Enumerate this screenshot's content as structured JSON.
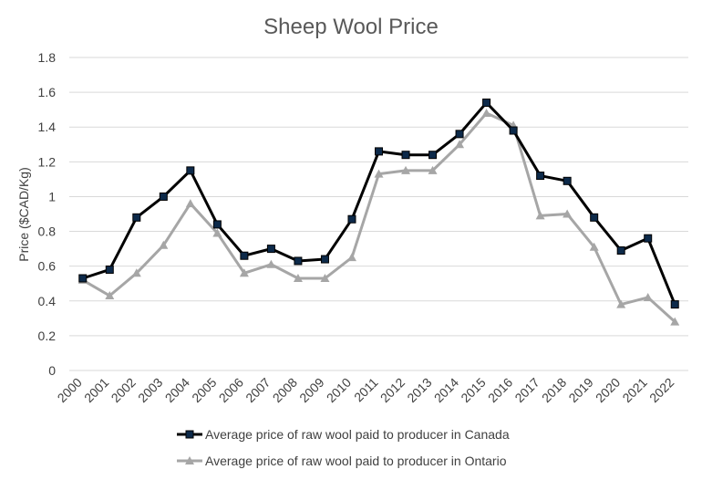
{
  "chart_data": {
    "type": "line",
    "title": "Sheep Wool Price",
    "xlabel": "",
    "ylabel": "Price ($CAD/Kg)",
    "ylim": [
      0,
      1.8
    ],
    "yticks": [
      "0",
      "0.2",
      "0.4",
      "0.6",
      "0.8",
      "1",
      "1.2",
      "1.4",
      "1.6",
      "1.8"
    ],
    "categories": [
      "2000",
      "2001",
      "2002",
      "2003",
      "2004",
      "2005",
      "2006",
      "2007",
      "2008",
      "2009",
      "2010",
      "2011",
      "2012",
      "2013",
      "2014",
      "2015",
      "2016",
      "2017",
      "2018",
      "2019",
      "2020",
      "2021",
      "2022"
    ],
    "grid": true,
    "legend_position": "bottom",
    "series": [
      {
        "name": "Average price of raw wool paid to producer in Canada",
        "color": "#000000",
        "marker": "square",
        "marker_fill": "#0d2a4a",
        "values": [
          0.53,
          0.58,
          0.88,
          1.0,
          1.15,
          0.84,
          0.66,
          0.7,
          0.63,
          0.64,
          0.87,
          1.26,
          1.24,
          1.24,
          1.36,
          1.54,
          1.38,
          1.12,
          1.09,
          0.88,
          0.69,
          0.76,
          0.38
        ]
      },
      {
        "name": "Average price of raw wool paid to producer in Ontario",
        "color": "#a6a6a6",
        "marker": "triangle",
        "marker_fill": "#a6a6a6",
        "values": [
          0.52,
          0.43,
          0.56,
          0.72,
          0.96,
          0.79,
          0.56,
          0.61,
          0.53,
          0.53,
          0.65,
          1.13,
          1.15,
          1.15,
          1.3,
          1.48,
          1.41,
          0.89,
          0.9,
          0.71,
          0.38,
          0.42,
          0.28
        ]
      }
    ]
  }
}
